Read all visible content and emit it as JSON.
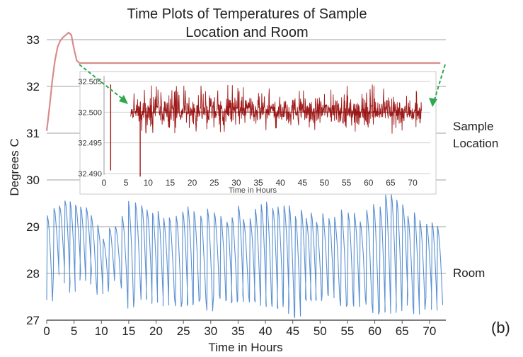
{
  "panel_label": "(b)",
  "chart_data": [
    {
      "id": "main",
      "type": "line",
      "title_lines": [
        "Time Plots of Temperatures of Sample",
        "Location and Room"
      ],
      "xlabel": "Time in Hours",
      "ylabel": "Degrees C",
      "xlim": [
        0,
        73
      ],
      "ylim": [
        27,
        33.4
      ],
      "x_ticks": [
        0,
        5,
        10,
        15,
        20,
        25,
        30,
        35,
        40,
        45,
        50,
        55,
        60,
        65,
        70
      ],
      "y_ticks": [
        27,
        28,
        29,
        30,
        31,
        32,
        33
      ],
      "grid": "horizontal",
      "series": [
        {
          "name": "Sample Location",
          "color": "#d98c8c",
          "x": [
            0,
            0.5,
            1,
            1.5,
            2,
            2.5,
            3,
            3.5,
            4,
            4.5,
            5,
            5.5,
            6,
            10,
            20,
            30,
            40,
            50,
            60,
            70,
            72
          ],
          "y": [
            31.05,
            31.55,
            32.1,
            32.55,
            32.85,
            32.98,
            33.05,
            33.1,
            33.15,
            33.1,
            32.8,
            32.55,
            32.5,
            32.5,
            32.5,
            32.5,
            32.5,
            32.5,
            32.5,
            32.5,
            32.5
          ]
        },
        {
          "name": "Room",
          "color": "#3d7cc9",
          "x": [
            0,
            1,
            2,
            3,
            4,
            5,
            6,
            7,
            8,
            9,
            10,
            11,
            12,
            13,
            14,
            15,
            16,
            17,
            18,
            19,
            20,
            21,
            22,
            23,
            24,
            25,
            26,
            27,
            28,
            29,
            30,
            31,
            32,
            33,
            34,
            35,
            36,
            37,
            38,
            39,
            40,
            41,
            42,
            43,
            44,
            45,
            46,
            47,
            48,
            49,
            50,
            51,
            52,
            53,
            54,
            55,
            56,
            57,
            58,
            59,
            60,
            61,
            62,
            63,
            64,
            65,
            66,
            67,
            68,
            69,
            70,
            71,
            72
          ],
          "y_high": [
            29.2,
            29.3,
            29.5,
            29.6,
            29.65,
            29.5,
            29.4,
            29.45,
            29.3,
            29.1,
            28.7,
            28.9,
            29.0,
            29.2,
            29.4,
            29.6,
            29.5,
            29.45,
            29.3,
            29.4,
            29.35,
            29.3,
            29.25,
            29.3,
            29.3,
            29.4,
            29.35,
            29.3,
            29.2,
            29.25,
            29.3,
            29.2,
            29.2,
            29.15,
            29.3,
            29.4,
            29.2,
            29.25,
            29.3,
            29.4,
            29.5,
            29.4,
            29.35,
            29.3,
            29.4,
            29.3,
            29.35,
            29.3,
            29.3,
            29.2,
            29.2,
            29.3,
            29.2,
            29.25,
            29.3,
            29.35,
            29.3,
            29.2,
            29.2,
            29.3,
            29.4,
            29.5,
            29.6,
            29.65,
            29.5,
            29.4,
            29.35,
            29.3,
            29.25,
            29.2,
            29.1,
            29.0,
            28.8
          ],
          "y_low": [
            27.5,
            27.8,
            28.0,
            27.9,
            27.6,
            27.9,
            28.0,
            27.9,
            27.85,
            27.5,
            27.4,
            27.8,
            27.9,
            27.9,
            27.7,
            27.2,
            27.5,
            27.4,
            27.55,
            27.3,
            27.45,
            27.4,
            27.5,
            27.5,
            27.3,
            27.4,
            27.5,
            27.4,
            27.5,
            27.4,
            27.3,
            27.45,
            27.4,
            27.3,
            27.2,
            27.55,
            27.6,
            27.55,
            27.45,
            27.35,
            27.2,
            27.3,
            27.25,
            27.3,
            27.2,
            27.15,
            27.2,
            27.3,
            27.4,
            27.5,
            27.6,
            27.5,
            27.55,
            27.45,
            27.4,
            27.5,
            27.45,
            27.5,
            27.4,
            27.25,
            27.3,
            27.35,
            27.25,
            27.3,
            27.3,
            27.4,
            27.35,
            27.3,
            27.35,
            27.4,
            27.35,
            27.3,
            27.6
          ]
        }
      ],
      "series_labels": [
        "Sample Location",
        "Room"
      ]
    },
    {
      "id": "inset",
      "type": "line",
      "xlabel": "Time in Hours",
      "xlim": [
        0,
        74
      ],
      "ylim": [
        32.4895,
        32.5065
      ],
      "x_ticks": [
        0,
        5,
        10,
        15,
        20,
        25,
        30,
        35,
        40,
        45,
        50,
        55,
        60,
        65,
        70
      ],
      "y_ticks": [
        32.49,
        32.495,
        32.5,
        32.505
      ],
      "y_tick_labels": [
        "32.490",
        "32.495",
        "32.500",
        "32.505"
      ],
      "grid": "horizontal",
      "series": [
        {
          "name": "Sample Location",
          "color": "#a01a1a",
          "x_start": 6,
          "x_end": 72,
          "center": 32.5,
          "band_low": 32.497,
          "band_high": 32.5035,
          "y_min": 32.4965,
          "y_max": 32.5045,
          "spikes": [
            {
              "x": 1.5,
              "y_low": 32.4905,
              "y_high": 32.5045
            },
            {
              "x": 8.2,
              "y_low": 32.4895,
              "y_high": 32.5005
            }
          ]
        }
      ]
    }
  ]
}
